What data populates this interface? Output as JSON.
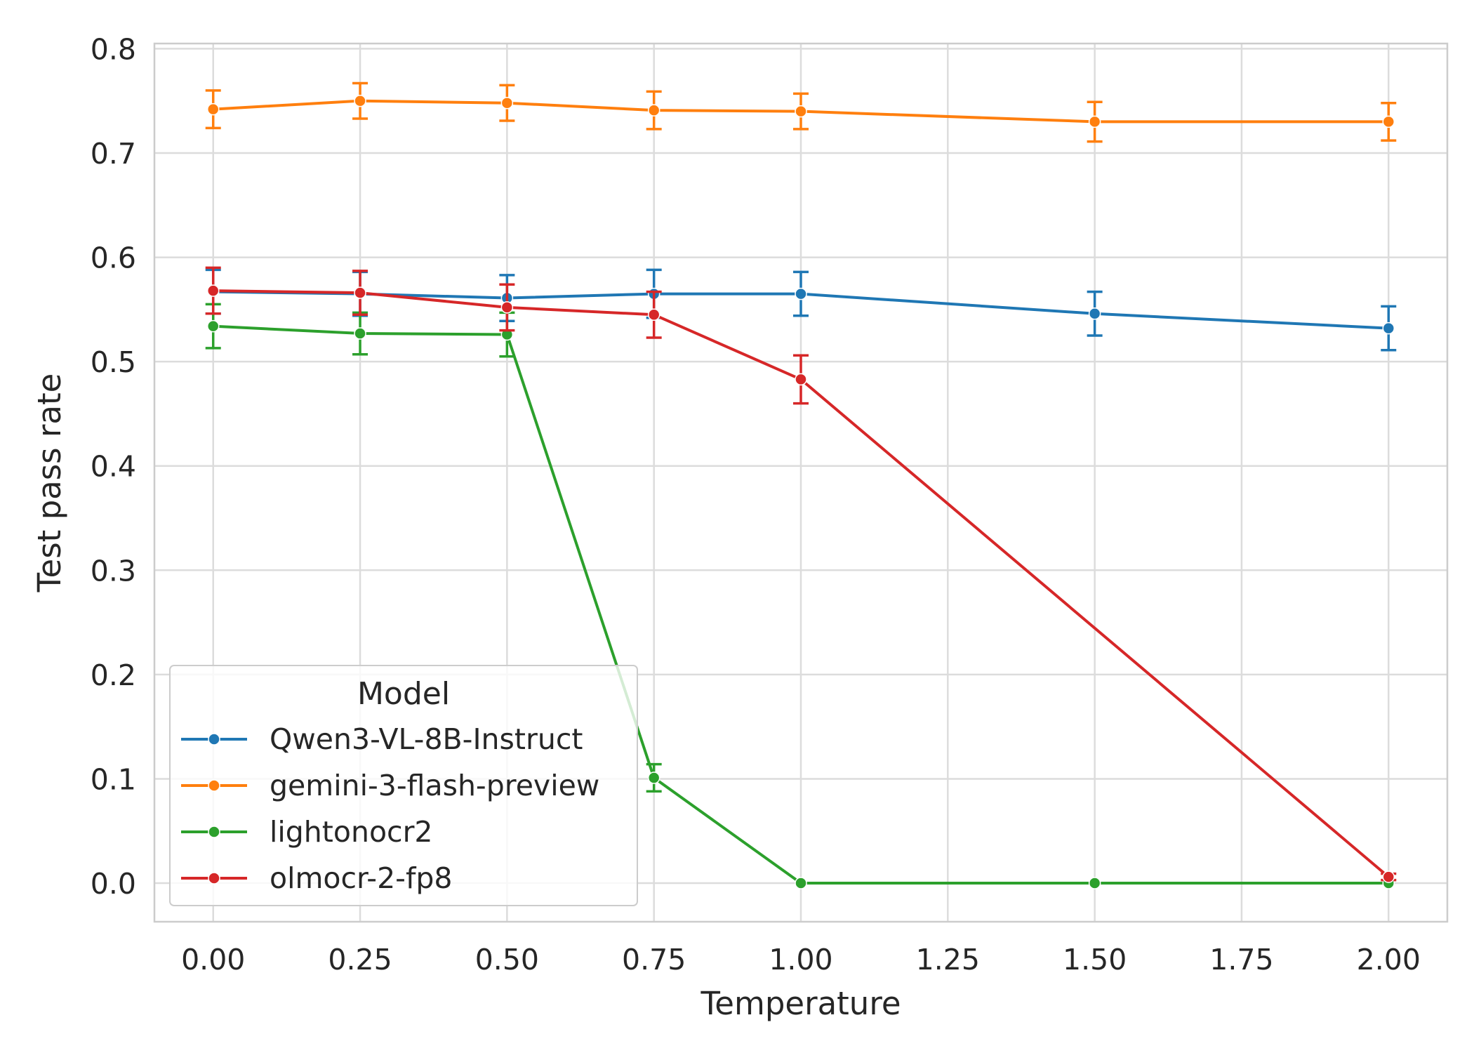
{
  "chart_data": {
    "type": "line",
    "title": "",
    "xlabel": "Temperature",
    "ylabel": "Test pass rate",
    "xlim": [
      -0.1,
      2.1
    ],
    "ylim": [
      -0.037,
      0.805
    ],
    "x_ticks": [
      0.0,
      0.25,
      0.5,
      0.75,
      1.0,
      1.25,
      1.5,
      1.75,
      2.0
    ],
    "x_tick_labels": [
      "0.00",
      "0.25",
      "0.50",
      "0.75",
      "1.00",
      "1.25",
      "1.50",
      "1.75",
      "2.00"
    ],
    "y_ticks": [
      0.0,
      0.1,
      0.2,
      0.3,
      0.4,
      0.5,
      0.6,
      0.7,
      0.8
    ],
    "y_tick_labels": [
      "0.0",
      "0.1",
      "0.2",
      "0.3",
      "0.4",
      "0.5",
      "0.6",
      "0.7",
      "0.8"
    ],
    "grid": true,
    "legend": {
      "title": "Model",
      "position": "lower-left"
    },
    "x": [
      0.0,
      0.25,
      0.5,
      0.75,
      1.0,
      1.5,
      2.0
    ],
    "series": [
      {
        "name": "Qwen3-VL-8B-Instruct",
        "color": "#1f77b4",
        "values": [
          0.567,
          0.565,
          0.561,
          0.565,
          0.565,
          0.546,
          0.532
        ],
        "err": [
          0.021,
          0.021,
          0.022,
          0.023,
          0.021,
          0.021,
          0.021
        ]
      },
      {
        "name": "gemini-3-flash-preview",
        "color": "#ff7f0e",
        "values": [
          0.742,
          0.75,
          0.748,
          0.741,
          0.74,
          0.73,
          0.73
        ],
        "err": [
          0.018,
          0.017,
          0.017,
          0.018,
          0.017,
          0.019,
          0.018
        ]
      },
      {
        "name": "lightonocr2",
        "color": "#2ca02c",
        "values": [
          0.534,
          0.527,
          0.526,
          0.101,
          0.0,
          0.0,
          0.0
        ],
        "err": [
          0.021,
          0.02,
          0.021,
          0.013,
          0.0,
          0.0,
          0.0
        ]
      },
      {
        "name": "olmocr-2-fp8",
        "color": "#d62728",
        "values": [
          0.568,
          0.566,
          0.552,
          0.545,
          0.483,
          null,
          0.006
        ],
        "err": [
          0.022,
          0.021,
          0.022,
          0.022,
          0.023,
          null,
          0.003
        ]
      }
    ]
  }
}
